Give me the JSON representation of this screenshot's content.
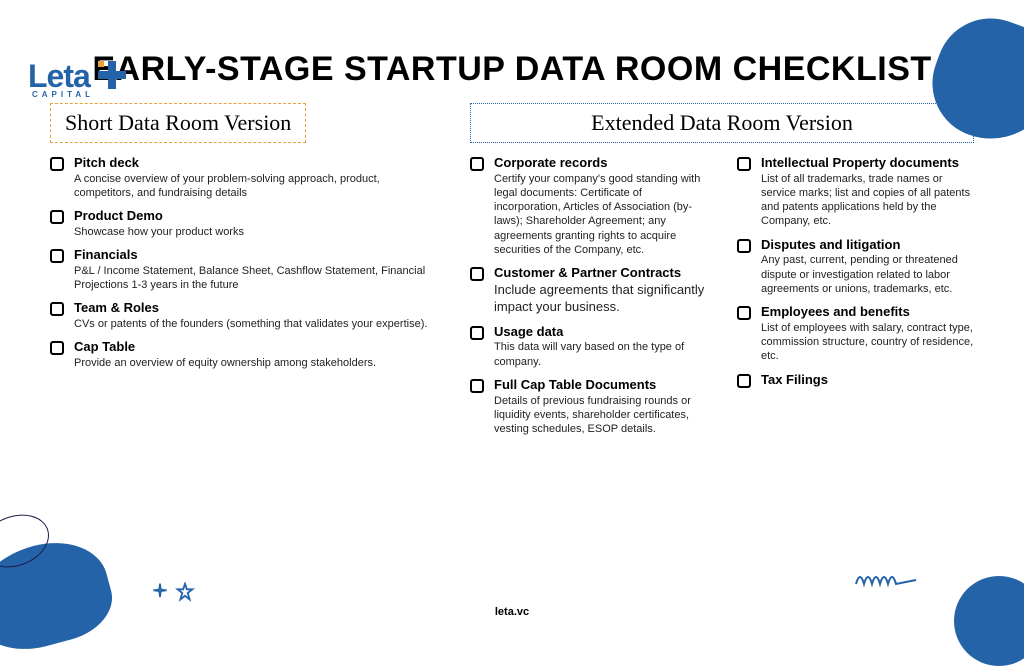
{
  "logo": {
    "text": "Leta",
    "sub": "CAPITAL"
  },
  "title": "EARLY-STAGE STARTUP DATA ROOM CHECKLIST",
  "short": {
    "header": "Short Data Room Version",
    "items": [
      {
        "t": "Pitch deck",
        "d": "A concise overview of your problem-solving approach, product, competitors, and fundraising details"
      },
      {
        "t": "Product Demo",
        "d": "Showcase how your product works"
      },
      {
        "t": "Financials",
        "d": "P&L / Income Statement, Balance Sheet, Cashflow Statement, Financial Projections 1-3 years in the future"
      },
      {
        "t": "Team & Roles",
        "d": "CVs or patents of the founders (something that validates your expertise)."
      },
      {
        "t": "Cap Table",
        "d": "Provide an overview of equity ownership among stakeholders."
      }
    ]
  },
  "extended": {
    "header": "Extended Data Room Version",
    "colA": [
      {
        "t": "Corporate records",
        "d": "Certify your company's good standing with legal documents: Certificate of incorporation, Articles of Association (by-laws); Shareholder Agreement; any agreements granting rights to acquire securities of the Company, etc."
      },
      {
        "t": "Customer & Partner Contracts",
        "d": "Include agreements that significantly impact your business.",
        "lg": true
      },
      {
        "t": "Usage data",
        "d": "This data will vary based on the type of company."
      },
      {
        "t": "Full Cap Table Documents",
        "d": "Details of previous fundraising rounds or liquidity events, shareholder certificates, vesting schedules, ESOP details."
      }
    ],
    "colB": [
      {
        "t": "Intellectual Property documents",
        "d": "List of all trademarks, trade names or service marks; list and copies of all patents and patents applications held by the Company, etc."
      },
      {
        "t": "Disputes and litigation",
        "d": "Any past, current, pending or threatened dispute or investigation related to labor agreements or unions, trademarks, etc."
      },
      {
        "t": "Employees and benefits",
        "d": "List of employees with salary, contract type, commission structure, country of residence, etc."
      },
      {
        "t": "Tax Filings",
        "d": ""
      }
    ]
  },
  "footer": "leta.vc",
  "colors": {
    "accent": "#2563a8",
    "orange": "#e8a23d"
  }
}
